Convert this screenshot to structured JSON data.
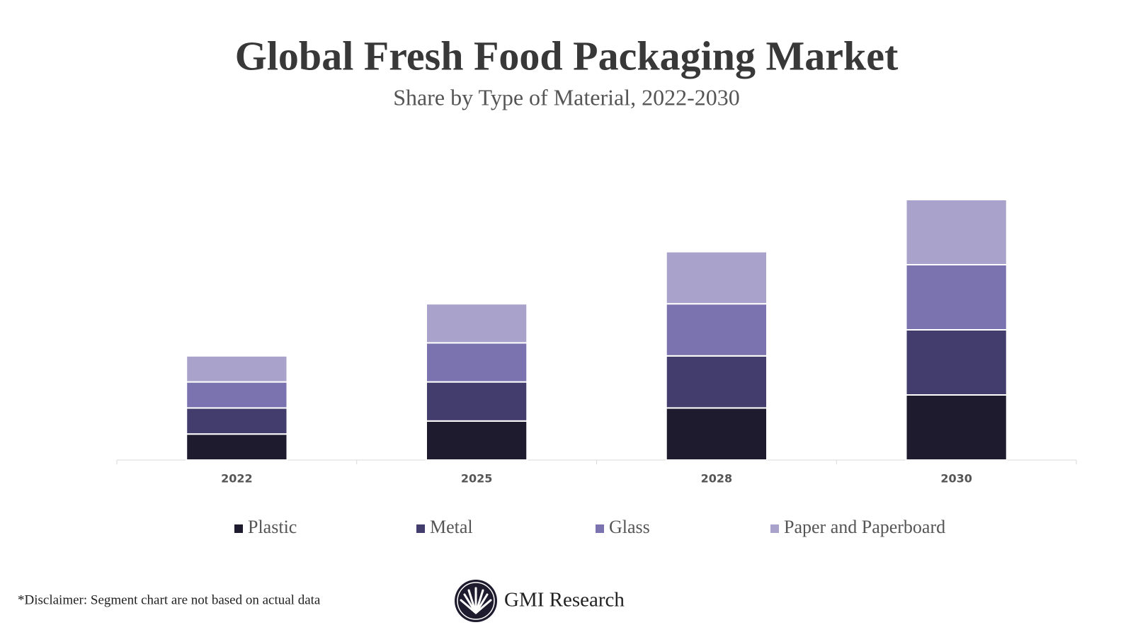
{
  "chart_data": {
    "type": "stacked_bar",
    "title": "Global Fresh Food Packaging Market",
    "subtitle": "Share by Type of Material, 2022-2030",
    "categories": [
      "2022",
      "2025",
      "2028",
      "2030"
    ],
    "series": [
      {
        "name": "Plastic",
        "color": "#1e1b2e",
        "values": [
          2,
          3,
          4,
          5
        ]
      },
      {
        "name": "Metal",
        "color": "#433d6e",
        "values": [
          2,
          3,
          4,
          5
        ]
      },
      {
        "name": "Glass",
        "color": "#7b73b0",
        "values": [
          2,
          3,
          4,
          5
        ]
      },
      {
        "name": "Paper and Paperboard",
        "color": "#a9a3cb",
        "values": [
          2,
          3,
          4,
          5
        ]
      }
    ],
    "ylim": [
      0,
      25
    ],
    "legend": "bottom",
    "disclaimer": "*Disclaimer:  Segment chart are not based on actual data",
    "brand": "GMI Research"
  }
}
